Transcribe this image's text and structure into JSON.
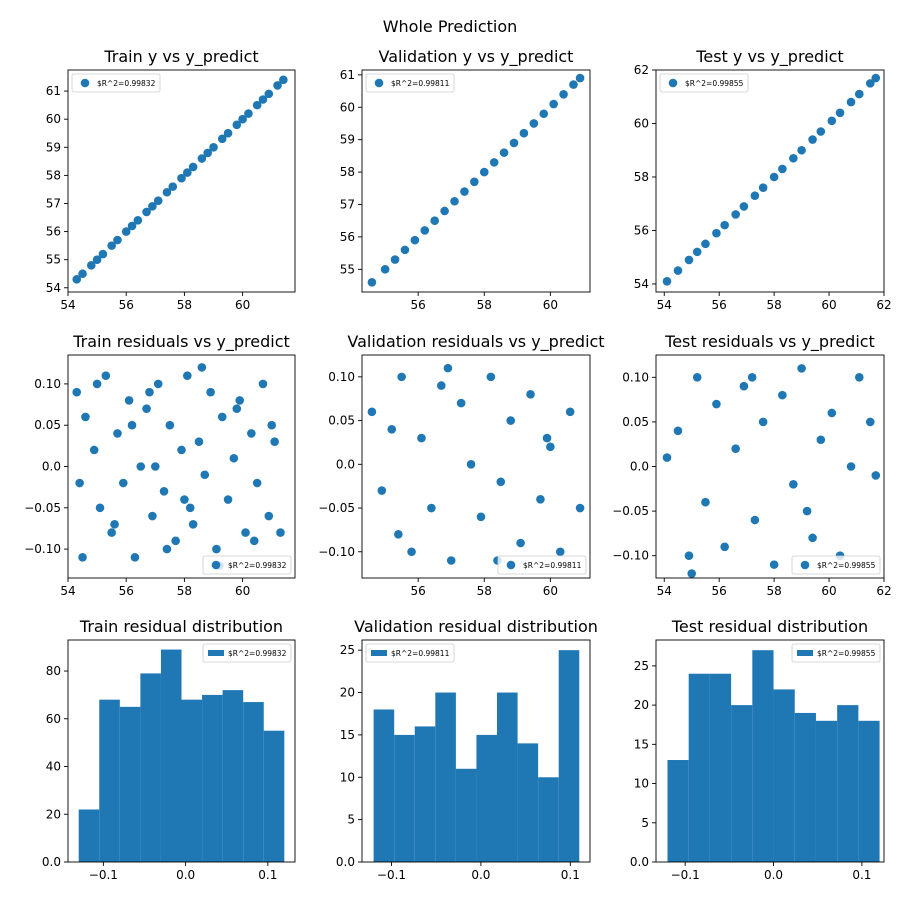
{
  "figure": {
    "suptitle": "Whole Prediction"
  },
  "colors": {
    "series": "#1f77b4",
    "axis": "#000000",
    "background": "#ffffff"
  },
  "chart_data": [
    {
      "type": "scatter",
      "title": "Train y vs y_predict",
      "xlabel": "",
      "ylabel": "",
      "xlim": [
        54.0,
        61.8
      ],
      "ylim": [
        53.85,
        61.75
      ],
      "xticks": [
        54,
        56,
        58,
        60
      ],
      "yticks": [
        54,
        55,
        56,
        57,
        58,
        59,
        60,
        61
      ],
      "legend": {
        "label": "$R^2=0.99832",
        "loc": "upper left"
      },
      "x": [
        54.3,
        54.5,
        54.8,
        55.0,
        55.2,
        55.5,
        55.7,
        56.0,
        56.2,
        56.4,
        56.7,
        56.9,
        57.1,
        57.4,
        57.6,
        57.9,
        58.1,
        58.3,
        58.6,
        58.8,
        59.0,
        59.3,
        59.5,
        59.8,
        60.0,
        60.2,
        60.5,
        60.7,
        60.9,
        61.2,
        61.4
      ],
      "y": [
        54.3,
        54.5,
        54.8,
        55.0,
        55.2,
        55.5,
        55.7,
        56.0,
        56.2,
        56.4,
        56.7,
        56.9,
        57.1,
        57.4,
        57.6,
        57.9,
        58.1,
        58.3,
        58.6,
        58.8,
        59.0,
        59.3,
        59.5,
        59.8,
        60.0,
        60.2,
        60.5,
        60.7,
        60.9,
        61.2,
        61.4
      ]
    },
    {
      "type": "scatter",
      "title": "Validation y vs y_predict",
      "xlabel": "",
      "ylabel": "",
      "xlim": [
        54.3,
        61.2
      ],
      "ylim": [
        54.3,
        61.15
      ],
      "xticks": [
        56,
        58,
        60
      ],
      "yticks": [
        55,
        56,
        57,
        58,
        59,
        60,
        61
      ],
      "legend": {
        "label": "$R^2=0.99811",
        "loc": "upper left"
      },
      "x": [
        54.6,
        55.0,
        55.3,
        55.6,
        55.9,
        56.2,
        56.5,
        56.8,
        57.1,
        57.4,
        57.7,
        58.0,
        58.3,
        58.6,
        58.9,
        59.2,
        59.5,
        59.8,
        60.1,
        60.4,
        60.7,
        60.9
      ],
      "y": [
        54.6,
        55.0,
        55.3,
        55.6,
        55.9,
        56.2,
        56.5,
        56.8,
        57.1,
        57.4,
        57.7,
        58.0,
        58.3,
        58.6,
        58.9,
        59.2,
        59.5,
        59.8,
        60.1,
        60.4,
        60.7,
        60.9
      ]
    },
    {
      "type": "scatter",
      "title": "Test y vs y_predict",
      "xlabel": "",
      "ylabel": "",
      "xlim": [
        53.7,
        62.0
      ],
      "ylim": [
        53.7,
        62.0
      ],
      "xticks": [
        54,
        56,
        58,
        60,
        62
      ],
      "yticks": [
        54,
        56,
        58,
        60,
        62
      ],
      "legend": {
        "label": "$R^2=0.99855",
        "loc": "upper left"
      },
      "x": [
        54.1,
        54.5,
        54.9,
        55.2,
        55.5,
        55.9,
        56.2,
        56.6,
        56.9,
        57.3,
        57.6,
        58.0,
        58.3,
        58.7,
        59.0,
        59.4,
        59.7,
        60.1,
        60.4,
        60.8,
        61.1,
        61.5,
        61.7
      ],
      "y": [
        54.1,
        54.5,
        54.9,
        55.2,
        55.5,
        55.9,
        56.2,
        56.6,
        56.9,
        57.3,
        57.6,
        58.0,
        58.3,
        58.7,
        59.0,
        59.4,
        59.7,
        60.1,
        60.4,
        60.8,
        61.1,
        61.5,
        61.7
      ]
    },
    {
      "type": "scatter",
      "title": "Train residuals vs y_predict",
      "xlabel": "",
      "ylabel": "",
      "xlim": [
        54.0,
        61.8
      ],
      "ylim": [
        -0.135,
        0.135
      ],
      "xticks": [
        54,
        56,
        58,
        60
      ],
      "yticks": [
        -0.1,
        -0.05,
        0.0,
        0.05,
        0.1
      ],
      "legend": {
        "label": "$R^2=0.99832",
        "loc": "lower right"
      },
      "x": [
        54.3,
        54.5,
        54.6,
        54.9,
        55.1,
        55.3,
        55.5,
        55.7,
        55.9,
        56.1,
        56.3,
        56.5,
        56.7,
        56.9,
        57.1,
        57.3,
        57.5,
        57.7,
        57.9,
        58.1,
        58.3,
        58.5,
        58.7,
        58.9,
        59.1,
        59.3,
        59.5,
        59.7,
        59.9,
        60.1,
        60.3,
        60.5,
        60.7,
        60.9,
        61.1,
        61.3,
        54.4,
        55.0,
        55.6,
        56.2,
        56.8,
        57.4,
        58.0,
        58.6,
        59.2,
        59.8,
        60.4,
        61.0,
        57.0,
        58.2
      ],
      "y": [
        0.09,
        -0.11,
        0.06,
        0.02,
        -0.05,
        0.11,
        -0.08,
        0.04,
        -0.02,
        0.08,
        -0.11,
        0.0,
        0.07,
        -0.06,
        0.1,
        -0.03,
        0.05,
        -0.09,
        0.02,
        0.11,
        -0.07,
        0.03,
        -0.01,
        0.09,
        -0.1,
        0.06,
        -0.04,
        0.01,
        0.08,
        -0.08,
        0.04,
        -0.02,
        0.1,
        -0.06,
        0.03,
        -0.08,
        -0.02,
        0.1,
        -0.07,
        0.05,
        0.09,
        -0.1,
        -0.04,
        0.12,
        -0.12,
        0.07,
        -0.09,
        0.05,
        0.0,
        -0.05
      ]
    },
    {
      "type": "scatter",
      "title": "Validation residuals vs y_predict",
      "xlabel": "",
      "ylabel": "",
      "xlim": [
        54.3,
        61.2
      ],
      "ylim": [
        -0.13,
        0.125
      ],
      "xticks": [
        56,
        58,
        60
      ],
      "yticks": [
        -0.1,
        -0.05,
        0.0,
        0.05,
        0.1
      ],
      "legend": {
        "label": "$R^2=0.99811",
        "loc": "lower right"
      },
      "x": [
        54.6,
        54.9,
        55.2,
        55.5,
        55.8,
        56.1,
        56.4,
        56.7,
        57.0,
        57.3,
        57.6,
        57.9,
        58.2,
        58.5,
        58.8,
        59.1,
        59.4,
        59.7,
        60.0,
        60.3,
        60.6,
        60.9,
        55.4,
        56.9,
        58.4,
        59.9
      ],
      "y": [
        0.06,
        -0.03,
        0.04,
        0.1,
        -0.1,
        0.03,
        -0.05,
        0.09,
        -0.11,
        0.07,
        0.0,
        -0.06,
        0.1,
        -0.02,
        0.05,
        -0.09,
        0.08,
        -0.04,
        0.02,
        -0.1,
        0.06,
        -0.05,
        -0.08,
        0.11,
        -0.11,
        0.03
      ]
    },
    {
      "type": "scatter",
      "title": "Test residuals vs y_predict",
      "xlabel": "",
      "ylabel": "",
      "xlim": [
        53.7,
        62.0
      ],
      "ylim": [
        -0.125,
        0.125
      ],
      "xticks": [
        54,
        56,
        58,
        60,
        62
      ],
      "yticks": [
        -0.1,
        -0.05,
        0.0,
        0.05,
        0.1
      ],
      "legend": {
        "label": "$R^2=0.99855",
        "loc": "lower right"
      },
      "x": [
        54.1,
        54.5,
        54.9,
        55.2,
        55.5,
        55.9,
        56.2,
        56.6,
        56.9,
        57.3,
        57.6,
        58.0,
        58.3,
        58.7,
        59.0,
        59.4,
        59.7,
        60.1,
        60.4,
        60.8,
        61.1,
        61.5,
        61.7,
        55.0,
        57.2,
        59.2
      ],
      "y": [
        0.01,
        0.04,
        -0.1,
        0.1,
        -0.04,
        0.07,
        -0.09,
        0.02,
        0.09,
        -0.06,
        0.05,
        -0.11,
        0.08,
        -0.02,
        0.11,
        -0.08,
        0.03,
        0.06,
        -0.1,
        0.0,
        0.1,
        0.05,
        -0.01,
        -0.12,
        0.1,
        -0.05
      ]
    },
    {
      "type": "bar",
      "title": "Train residual distribution",
      "xlabel": "",
      "ylabel": "",
      "xlim": [
        -0.143,
        0.133
      ],
      "ylim": [
        0,
        93
      ],
      "xticks": [
        -0.1,
        0.0,
        0.1
      ],
      "yticks": [
        0,
        20,
        40,
        60,
        80
      ],
      "legend": {
        "label": "$R^2=0.99832",
        "loc": "upper right"
      },
      "bin_edges": [
        -0.13,
        -0.105,
        -0.08,
        -0.055,
        -0.03,
        -0.005,
        0.02,
        0.045,
        0.07,
        0.095,
        0.12
      ],
      "values": [
        22,
        68,
        65,
        79,
        89,
        68,
        70,
        72,
        67,
        55
      ]
    },
    {
      "type": "bar",
      "title": "Validation residual distribution",
      "xlabel": "",
      "ylabel": "",
      "xlim": [
        -0.133,
        0.122
      ],
      "ylim": [
        0,
        26.2
      ],
      "xticks": [
        -0.1,
        0.0,
        0.1
      ],
      "yticks": [
        0,
        5,
        10,
        15,
        20,
        25
      ],
      "legend": {
        "label": "$R^2=0.99811",
        "loc": "upper left"
      },
      "bin_edges": [
        -0.12,
        -0.097,
        -0.074,
        -0.051,
        -0.028,
        -0.005,
        0.018,
        0.041,
        0.064,
        0.087,
        0.11
      ],
      "values": [
        18,
        15,
        16,
        20,
        11,
        15,
        20,
        14,
        10,
        25
      ]
    },
    {
      "type": "bar",
      "title": "Test residual distribution",
      "xlabel": "",
      "ylabel": "",
      "xlim": [
        -0.133,
        0.125
      ],
      "ylim": [
        0,
        28.3
      ],
      "xticks": [
        -0.1,
        0.0,
        0.1
      ],
      "yticks": [
        0,
        5,
        10,
        15,
        20,
        25
      ],
      "legend": {
        "label": "$R^2=0.99855",
        "loc": "upper right"
      },
      "bin_edges": [
        -0.12,
        -0.096,
        -0.072,
        -0.048,
        -0.024,
        0.0,
        0.024,
        0.048,
        0.072,
        0.096,
        0.12
      ],
      "values": [
        13,
        24,
        24,
        20,
        27,
        22,
        19,
        18,
        20,
        18
      ]
    }
  ]
}
